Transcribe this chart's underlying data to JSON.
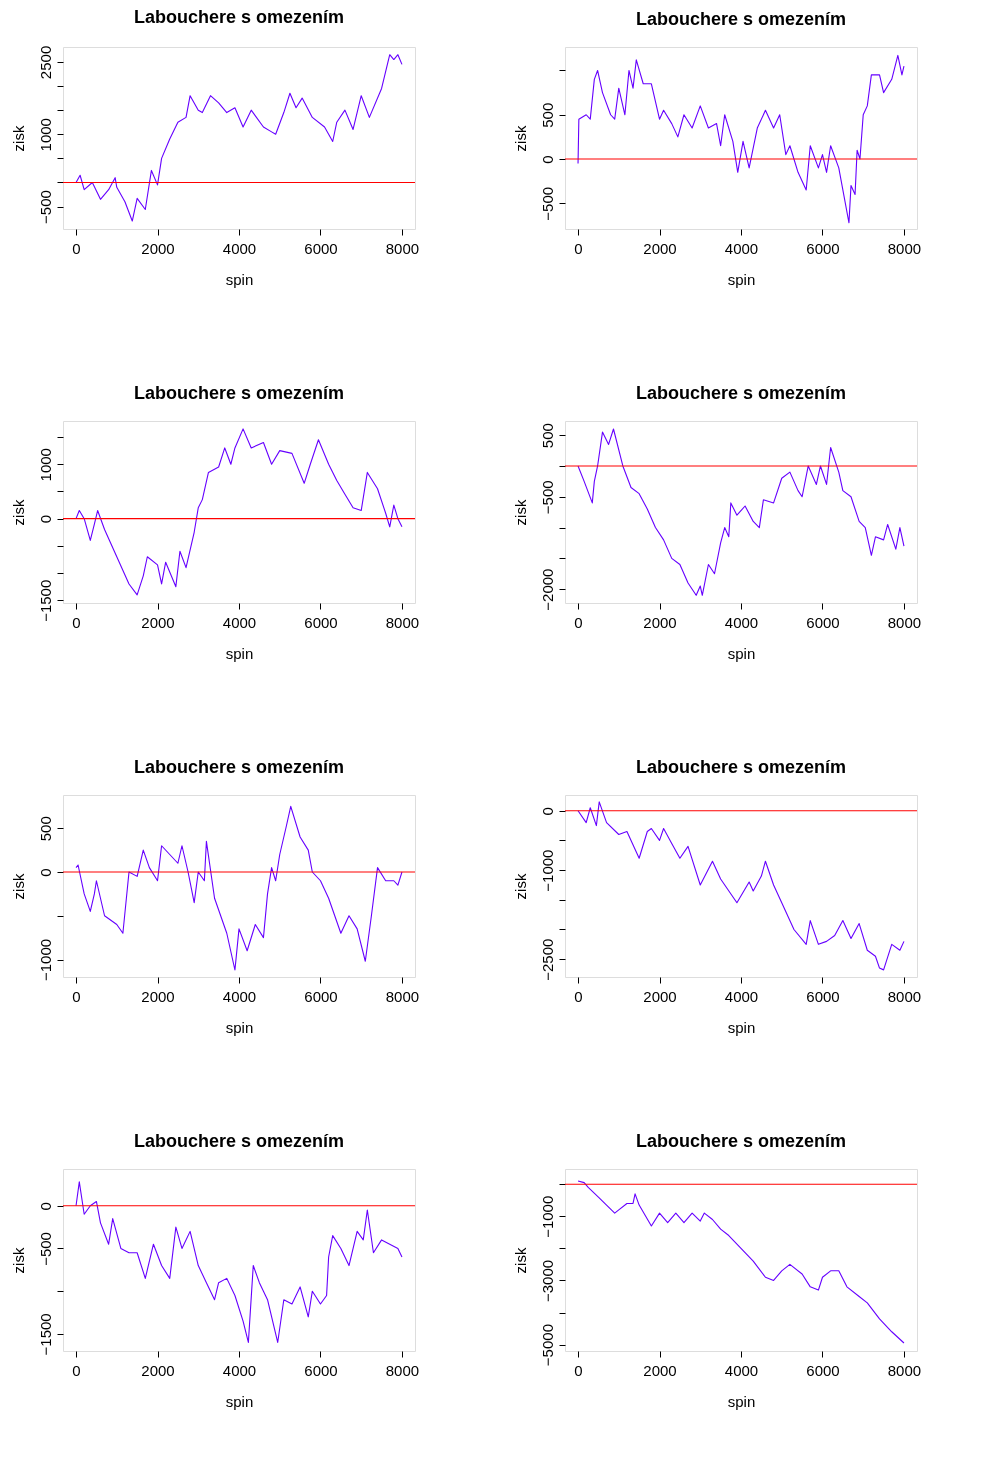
{
  "chart_data": [
    {
      "type": "line",
      "title": "Labouchere s omezením",
      "xlabel": "spin",
      "ylabel": "zisk",
      "xlim": [
        -320,
        8320
      ],
      "ylim": [
        -965,
        2810
      ],
      "xticks": [
        0,
        2000,
        4000,
        6000,
        8000
      ],
      "yticks": [
        -500,
        {
          "value": 0,
          "label": null
        },
        {
          "value": 500,
          "label": null
        },
        1000,
        {
          "value": 1500,
          "label": null
        },
        {
          "value": 2000,
          "label": null
        },
        2500
      ],
      "ref_lines": [
        {
          "axis": "y",
          "value": 0,
          "color": "#ff0000"
        }
      ],
      "x": [
        0,
        100,
        200,
        400,
        600,
        800,
        960,
        1000,
        1200,
        1380,
        1500,
        1700,
        1850,
        2000,
        2100,
        2300,
        2500,
        2700,
        2800,
        3000,
        3100,
        3300,
        3500,
        3700,
        3900,
        4100,
        4300,
        4600,
        4800,
        4900,
        5100,
        5250,
        5400,
        5550,
        5800,
        6100,
        6300,
        6400,
        6600,
        6800,
        7000,
        7200,
        7500,
        7700,
        7800,
        7900,
        8000
      ],
      "series": [
        {
          "color": "#6600ff",
          "values": [
            0,
            150,
            -150,
            0,
            -350,
            -150,
            100,
            -100,
            -400,
            -800,
            -330,
            -560,
            250,
            -50,
            500,
            900,
            1250,
            1350,
            1800,
            1500,
            1450,
            1800,
            1650,
            1450,
            1550,
            1150,
            1500,
            1150,
            1050,
            1000,
            1450,
            1850,
            1550,
            1750,
            1350,
            1150,
            850,
            1250,
            1500,
            1100,
            1800,
            1350,
            1950,
            2650,
            2550,
            2650,
            2450
          ]
        }
      ]
    },
    {
      "type": "line",
      "title": "Labouchere s omezením",
      "xlabel": "spin",
      "ylabel": "zisk",
      "xlim": [
        -320,
        8320
      ],
      "ylim": [
        -790,
        1265
      ],
      "xticks": [
        0,
        2000,
        4000,
        6000,
        8000
      ],
      "yticks": [
        -500,
        0,
        500,
        {
          "value": 1000,
          "label": null
        }
      ],
      "ref_lines": [
        {
          "axis": "y",
          "value": 0,
          "color": "#ff0000"
        }
      ],
      "x": [
        0,
        20,
        200,
        300,
        400,
        480,
        600,
        800,
        900,
        1000,
        1150,
        1250,
        1350,
        1430,
        1600,
        1800,
        2000,
        2100,
        2300,
        2450,
        2600,
        2800,
        3000,
        3200,
        3400,
        3500,
        3600,
        3800,
        3920,
        4050,
        4200,
        4400,
        4600,
        4800,
        4950,
        5100,
        5200,
        5400,
        5600,
        5700,
        5900,
        6000,
        6100,
        6200,
        6400,
        6650,
        6700,
        6800,
        6850,
        6920,
        7000,
        7100,
        7200,
        7400,
        7500,
        7700,
        7850,
        7950,
        8000
      ],
      "series": [
        {
          "color": "#6600ff",
          "values": [
            -50,
            450,
            500,
            450,
            900,
            1000,
            750,
            500,
            450,
            800,
            500,
            1000,
            800,
            1120,
            850,
            850,
            450,
            550,
            400,
            250,
            500,
            350,
            600,
            350,
            400,
            150,
            500,
            200,
            -150,
            200,
            -100,
            350,
            550,
            350,
            500,
            50,
            150,
            -150,
            -350,
            150,
            -100,
            50,
            -150,
            150,
            -100,
            -720,
            -300,
            -400,
            100,
            0,
            500,
            600,
            950,
            950,
            750,
            900,
            1170,
            950,
            1050
          ]
        }
      ]
    },
    {
      "type": "line",
      "title": "Labouchere s omezením",
      "xlabel": "spin",
      "ylabel": "zisk",
      "xlim": [
        -320,
        8320
      ],
      "ylim": [
        -1550,
        1795
      ],
      "xticks": [
        0,
        2000,
        4000,
        6000,
        8000
      ],
      "yticks": [
        -1500,
        {
          "value": -1000,
          "label": null
        },
        {
          "value": -500,
          "label": null
        },
        0,
        {
          "value": 500,
          "label": null
        },
        1000,
        {
          "value": 1500,
          "label": null
        }
      ],
      "ref_lines": [
        {
          "axis": "y",
          "value": 0,
          "color": "#ff0000"
        }
      ],
      "x": [
        0,
        80,
        200,
        350,
        450,
        530,
        700,
        1000,
        1300,
        1500,
        1650,
        1750,
        2000,
        2100,
        2200,
        2450,
        2550,
        2700,
        2900,
        3000,
        3100,
        3250,
        3500,
        3650,
        3800,
        3900,
        4100,
        4300,
        4600,
        4800,
        5000,
        5300,
        5600,
        5750,
        5950,
        6200,
        6400,
        6600,
        6800,
        7000,
        7150,
        7400,
        7600,
        7700,
        7800,
        7900,
        8000
      ],
      "series": [
        {
          "color": "#6600ff",
          "values": [
            0,
            150,
            0,
            -400,
            -100,
            150,
            -200,
            -700,
            -1200,
            -1400,
            -1050,
            -700,
            -850,
            -1200,
            -800,
            -1250,
            -600,
            -900,
            -250,
            200,
            350,
            850,
            950,
            1300,
            1000,
            1300,
            1650,
            1300,
            1400,
            1000,
            1250,
            1200,
            650,
            1000,
            1450,
            1000,
            700,
            450,
            200,
            150,
            850,
            550,
            100,
            -150,
            250,
            0,
            -150
          ]
        }
      ]
    },
    {
      "type": "line",
      "title": "Labouchere s omezením",
      "xlabel": "spin",
      "ylabel": "zisk",
      "xlim": [
        -320,
        8320
      ],
      "ylim": [
        -2225,
        730
      ],
      "xticks": [
        0,
        2000,
        4000,
        6000,
        8000
      ],
      "yticks": [
        -2000,
        {
          "value": -1500,
          "label": null
        },
        {
          "value": -1000,
          "label": null
        },
        -500,
        {
          "value": 0,
          "label": null
        },
        500
      ],
      "ref_lines": [
        {
          "axis": "y",
          "value": 0,
          "color": "#ff0000"
        }
      ],
      "x": [
        0,
        150,
        350,
        400,
        480,
        600,
        750,
        870,
        1100,
        1300,
        1500,
        1700,
        1900,
        2100,
        2300,
        2500,
        2700,
        2900,
        3000,
        3050,
        3200,
        3350,
        3500,
        3600,
        3700,
        3750,
        3900,
        4100,
        4300,
        4450,
        4550,
        4800,
        5000,
        5200,
        5400,
        5500,
        5650,
        5850,
        5950,
        6100,
        6200,
        6400,
        6500,
        6700,
        6900,
        7050,
        7200,
        7300,
        7500,
        7600,
        7800,
        7900,
        8000
      ],
      "series": [
        {
          "color": "#6600ff",
          "values": [
            0,
            -250,
            -600,
            -250,
            0,
            550,
            350,
            600,
            0,
            -350,
            -450,
            -700,
            -1000,
            -1200,
            -1500,
            -1600,
            -1900,
            -2100,
            -1950,
            -2100,
            -1600,
            -1750,
            -1250,
            -1000,
            -1150,
            -600,
            -800,
            -650,
            -900,
            -1000,
            -550,
            -600,
            -200,
            -100,
            -400,
            -500,
            0,
            -300,
            0,
            -300,
            300,
            -100,
            -400,
            -500,
            -900,
            -1000,
            -1450,
            -1150,
            -1200,
            -950,
            -1350,
            -1000,
            -1300
          ]
        }
      ]
    },
    {
      "type": "line",
      "title": "Labouchere s omezením",
      "xlabel": "spin",
      "ylabel": "zisk",
      "xlim": [
        -320,
        8320
      ],
      "ylim": [
        -1200,
        880
      ],
      "xticks": [
        0,
        2000,
        4000,
        6000,
        8000
      ],
      "yticks": [
        -1000,
        {
          "value": -500,
          "label": null
        },
        0,
        500
      ],
      "ref_lines": [
        {
          "axis": "y",
          "value": 0,
          "color": "#ff0000"
        }
      ],
      "x": [
        0,
        50,
        200,
        350,
        450,
        500,
        700,
        1000,
        1150,
        1300,
        1500,
        1650,
        1800,
        2000,
        2100,
        2300,
        2500,
        2600,
        2750,
        2900,
        3000,
        3150,
        3200,
        3400,
        3700,
        3900,
        4000,
        4200,
        4400,
        4600,
        4700,
        4800,
        4900,
        5000,
        5150,
        5270,
        5500,
        5700,
        5800,
        6000,
        6200,
        6500,
        6700,
        6900,
        7100,
        7250,
        7400,
        7600,
        7800,
        7900,
        8000
      ],
      "series": [
        {
          "color": "#6600ff",
          "values": [
            50,
            80,
            -250,
            -450,
            -250,
            -100,
            -500,
            -600,
            -700,
            0,
            -50,
            250,
            50,
            -100,
            300,
            200,
            100,
            300,
            0,
            -350,
            0,
            -100,
            350,
            -300,
            -700,
            -1120,
            -650,
            -900,
            -600,
            -750,
            -250,
            50,
            -100,
            200,
            500,
            750,
            400,
            250,
            0,
            -100,
            -300,
            -700,
            -500,
            -650,
            -1020,
            -500,
            50,
            -100,
            -100,
            -150,
            0
          ]
        }
      ]
    },
    {
      "type": "line",
      "title": "Labouchere s omezením",
      "xlabel": "spin",
      "ylabel": "zisk",
      "xlim": [
        -320,
        8320
      ],
      "ylim": [
        -2800,
        265
      ],
      "xticks": [
        0,
        2000,
        4000,
        6000,
        8000
      ],
      "yticks": [
        -2500,
        {
          "value": -2000,
          "label": null
        },
        {
          "value": -1500,
          "label": null
        },
        -1000,
        {
          "value": -500,
          "label": null
        },
        0
      ],
      "ref_lines": [
        {
          "axis": "y",
          "value": 0,
          "color": "#ff0000"
        }
      ],
      "x": [
        0,
        200,
        300,
        450,
        520,
        700,
        1000,
        1200,
        1500,
        1700,
        1800,
        2000,
        2100,
        2300,
        2500,
        2700,
        3000,
        3300,
        3500,
        3900,
        4200,
        4300,
        4500,
        4600,
        4800,
        5000,
        5300,
        5600,
        5700,
        5900,
        6100,
        6300,
        6500,
        6700,
        6900,
        7100,
        7300,
        7400,
        7500,
        7700,
        7900,
        8000
      ],
      "series": [
        {
          "color": "#6600ff",
          "values": [
            0,
            -200,
            50,
            -250,
            150,
            -200,
            -400,
            -350,
            -800,
            -350,
            -300,
            -500,
            -300,
            -550,
            -800,
            -600,
            -1250,
            -850,
            -1150,
            -1550,
            -1200,
            -1350,
            -1100,
            -850,
            -1250,
            -1550,
            -2000,
            -2250,
            -1850,
            -2250,
            -2200,
            -2100,
            -1850,
            -2150,
            -1900,
            -2350,
            -2450,
            -2650,
            -2680,
            -2250,
            -2350,
            -2200
          ]
        }
      ]
    },
    {
      "type": "line",
      "title": "Labouchere s omezením",
      "xlabel": "spin",
      "ylabel": "zisk",
      "xlim": [
        -320,
        8320
      ],
      "ylim": [
        -1700,
        430
      ],
      "xticks": [
        0,
        2000,
        4000,
        6000,
        8000
      ],
      "yticks": [
        -1500,
        {
          "value": -1000,
          "label": null
        },
        -500,
        0
      ],
      "ref_lines": [
        {
          "axis": "y",
          "value": 0,
          "color": "#ff0000"
        }
      ],
      "x": [
        0,
        80,
        200,
        350,
        500,
        600,
        800,
        900,
        1100,
        1300,
        1500,
        1700,
        1900,
        2100,
        2300,
        2450,
        2600,
        2800,
        3000,
        3200,
        3400,
        3500,
        3700,
        3900,
        4100,
        4230,
        4350,
        4500,
        4700,
        4950,
        5100,
        5300,
        5500,
        5700,
        5800,
        6000,
        6150,
        6200,
        6300,
        6500,
        6700,
        6900,
        7050,
        7150,
        7300,
        7500,
        7700,
        7900,
        8000
      ],
      "series": [
        {
          "color": "#6600ff",
          "values": [
            0,
            280,
            -100,
            0,
            50,
            -200,
            -450,
            -150,
            -500,
            -550,
            -550,
            -850,
            -450,
            -700,
            -850,
            -250,
            -500,
            -300,
            -700,
            -900,
            -1100,
            -900,
            -850,
            -1050,
            -1350,
            -1600,
            -700,
            -900,
            -1100,
            -1600,
            -1100,
            -1150,
            -950,
            -1300,
            -1000,
            -1150,
            -1050,
            -600,
            -350,
            -500,
            -700,
            -300,
            -400,
            -50,
            -550,
            -400,
            -450,
            -500,
            -600
          ]
        }
      ]
    },
    {
      "type": "line",
      "title": "Labouchere s omezením",
      "xlabel": "spin",
      "ylabel": "zisk",
      "xlim": [
        -320,
        8320
      ],
      "ylim": [
        -5200,
        475
      ],
      "xticks": [
        0,
        2000,
        4000,
        6000,
        8000
      ],
      "yticks": [
        -5000,
        {
          "value": -4000,
          "label": null
        },
        -3000,
        {
          "value": -2000,
          "label": null
        },
        -1000,
        {
          "value": 0,
          "label": null
        }
      ],
      "ref_lines": [
        {
          "axis": "y",
          "value": 0,
          "color": "#ff0000"
        }
      ],
      "x": [
        0,
        150,
        250,
        500,
        900,
        1000,
        1200,
        1350,
        1400,
        1500,
        1800,
        2000,
        2200,
        2400,
        2600,
        2800,
        3000,
        3100,
        3300,
        3500,
        3700,
        4000,
        4300,
        4600,
        4800,
        5000,
        5200,
        5500,
        5700,
        5900,
        6000,
        6200,
        6400,
        6600,
        6900,
        7100,
        7400,
        7700,
        8000
      ],
      "series": [
        {
          "color": "#6600ff",
          "values": [
            100,
            50,
            -100,
            -400,
            -900,
            -800,
            -600,
            -600,
            -300,
            -650,
            -1300,
            -900,
            -1200,
            -900,
            -1200,
            -900,
            -1150,
            -900,
            -1100,
            -1400,
            -1600,
            -2000,
            -2400,
            -2900,
            -3000,
            -2700,
            -2500,
            -2800,
            -3200,
            -3300,
            -2900,
            -2700,
            -2700,
            -3200,
            -3500,
            -3700,
            -4200,
            -4600,
            -4950
          ]
        }
      ]
    }
  ]
}
